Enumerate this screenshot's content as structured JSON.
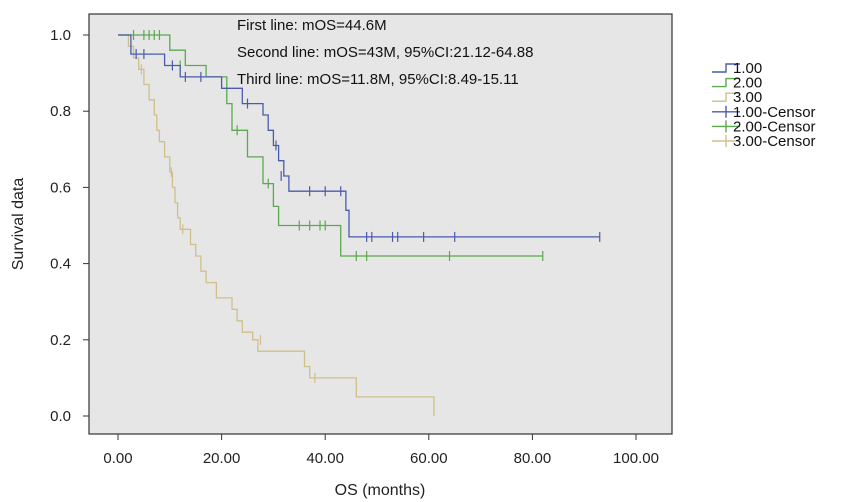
{
  "chart_data": {
    "type": "line",
    "step": true,
    "xlabel": "OS (months)",
    "ylabel": "Survival data",
    "xlim": [
      0,
      100
    ],
    "ylim": [
      0,
      1
    ],
    "xticks": [
      "0.00",
      "20.00",
      "40.00",
      "60.00",
      "80.00",
      "100.00"
    ],
    "yticks": [
      "0.0",
      "0.2",
      "0.4",
      "0.6",
      "0.8",
      "1.0"
    ],
    "plot_background": "#e6e6e6",
    "grid": false,
    "legend_position": "outside-right",
    "annotations": [
      "First line: mOS=44.6M",
      "Second line: mOS=43M, 95%CI:21.12-64.88",
      "Third line: mOS=11.8M, 95%CI:8.49-15.11"
    ],
    "legend": [
      "1.00",
      "2.00",
      "3.00",
      "1.00-Censor",
      "2.00-Censor",
      "3.00-Censor"
    ],
    "series": [
      {
        "name": "1.00",
        "color": "#4a5bad",
        "points": [
          [
            0,
            1.0
          ],
          [
            2.5,
            1.0
          ],
          [
            2.5,
            0.95
          ],
          [
            9,
            0.95
          ],
          [
            9,
            0.92
          ],
          [
            12,
            0.92
          ],
          [
            12,
            0.89
          ],
          [
            20,
            0.89
          ],
          [
            20,
            0.86
          ],
          [
            24,
            0.86
          ],
          [
            24,
            0.82
          ],
          [
            28,
            0.82
          ],
          [
            28,
            0.79
          ],
          [
            29,
            0.79
          ],
          [
            29,
            0.75
          ],
          [
            30,
            0.75
          ],
          [
            30,
            0.71
          ],
          [
            31,
            0.71
          ],
          [
            31,
            0.67
          ],
          [
            32,
            0.67
          ],
          [
            32,
            0.63
          ],
          [
            33,
            0.63
          ],
          [
            33,
            0.59
          ],
          [
            44,
            0.59
          ],
          [
            44,
            0.54
          ],
          [
            44.6,
            0.54
          ],
          [
            44.6,
            0.47
          ],
          [
            93,
            0.47
          ]
        ],
        "censors": [
          [
            3.5,
            0.95
          ],
          [
            5,
            0.95
          ],
          [
            10.5,
            0.92
          ],
          [
            13,
            0.89
          ],
          [
            16,
            0.89
          ],
          [
            25,
            0.82
          ],
          [
            30.5,
            0.71
          ],
          [
            31.5,
            0.63
          ],
          [
            37,
            0.59
          ],
          [
            40,
            0.59
          ],
          [
            43,
            0.59
          ],
          [
            48,
            0.47
          ],
          [
            49,
            0.47
          ],
          [
            53,
            0.47
          ],
          [
            54,
            0.47
          ],
          [
            59,
            0.47
          ],
          [
            65,
            0.47
          ],
          [
            93,
            0.47
          ]
        ]
      },
      {
        "name": "2.00",
        "color": "#5aaa4e",
        "points": [
          [
            0,
            1.0
          ],
          [
            10,
            1.0
          ],
          [
            10,
            0.96
          ],
          [
            13,
            0.96
          ],
          [
            13,
            0.92
          ],
          [
            17,
            0.92
          ],
          [
            17,
            0.89
          ],
          [
            21,
            0.89
          ],
          [
            21,
            0.82
          ],
          [
            22,
            0.82
          ],
          [
            22,
            0.75
          ],
          [
            25,
            0.75
          ],
          [
            25,
            0.68
          ],
          [
            28,
            0.68
          ],
          [
            28,
            0.61
          ],
          [
            30,
            0.61
          ],
          [
            30,
            0.55
          ],
          [
            31,
            0.55
          ],
          [
            31,
            0.5
          ],
          [
            43,
            0.5
          ],
          [
            43,
            0.42
          ],
          [
            82,
            0.42
          ]
        ],
        "censors": [
          [
            3,
            1.0
          ],
          [
            5,
            1.0
          ],
          [
            6,
            1.0
          ],
          [
            7,
            1.0
          ],
          [
            8,
            1.0
          ],
          [
            12,
            0.92
          ],
          [
            23,
            0.75
          ],
          [
            29,
            0.61
          ],
          [
            35,
            0.5
          ],
          [
            37,
            0.5
          ],
          [
            39,
            0.5
          ],
          [
            40,
            0.5
          ],
          [
            46,
            0.42
          ],
          [
            48,
            0.42
          ],
          [
            64,
            0.42
          ],
          [
            82,
            0.42
          ]
        ]
      },
      {
        "name": "3.00",
        "color": "#cfc08a",
        "points": [
          [
            0,
            1.0
          ],
          [
            2,
            1.0
          ],
          [
            2,
            0.97
          ],
          [
            3,
            0.97
          ],
          [
            3,
            0.94
          ],
          [
            4,
            0.94
          ],
          [
            4,
            0.91
          ],
          [
            5,
            0.91
          ],
          [
            5,
            0.87
          ],
          [
            6,
            0.87
          ],
          [
            6,
            0.83
          ],
          [
            7,
            0.83
          ],
          [
            7,
            0.79
          ],
          [
            7.5,
            0.79
          ],
          [
            7.5,
            0.75
          ],
          [
            8,
            0.75
          ],
          [
            8,
            0.72
          ],
          [
            9,
            0.72
          ],
          [
            9,
            0.68
          ],
          [
            10,
            0.68
          ],
          [
            10,
            0.64
          ],
          [
            10.5,
            0.64
          ],
          [
            10.5,
            0.6
          ],
          [
            11,
            0.6
          ],
          [
            11,
            0.56
          ],
          [
            11.5,
            0.56
          ],
          [
            11.5,
            0.52
          ],
          [
            12,
            0.52
          ],
          [
            12,
            0.49
          ],
          [
            14,
            0.49
          ],
          [
            14,
            0.45
          ],
          [
            15,
            0.45
          ],
          [
            15,
            0.42
          ],
          [
            16,
            0.42
          ],
          [
            16,
            0.38
          ],
          [
            17,
            0.38
          ],
          [
            17,
            0.35
          ],
          [
            19,
            0.35
          ],
          [
            19,
            0.31
          ],
          [
            22,
            0.31
          ],
          [
            22,
            0.28
          ],
          [
            23,
            0.28
          ],
          [
            23,
            0.25
          ],
          [
            24,
            0.25
          ],
          [
            24,
            0.22
          ],
          [
            26,
            0.22
          ],
          [
            26,
            0.2
          ],
          [
            27,
            0.2
          ],
          [
            27,
            0.17
          ],
          [
            36,
            0.17
          ],
          [
            36,
            0.13
          ],
          [
            37,
            0.13
          ],
          [
            37,
            0.1
          ],
          [
            46,
            0.1
          ],
          [
            46,
            0.05
          ],
          [
            61,
            0.05
          ],
          [
            61,
            0.0
          ]
        ],
        "censors": [
          [
            4.5,
            0.91
          ],
          [
            10.3,
            0.64
          ],
          [
            12.5,
            0.49
          ],
          [
            27.5,
            0.2
          ],
          [
            38,
            0.1
          ]
        ]
      }
    ]
  }
}
